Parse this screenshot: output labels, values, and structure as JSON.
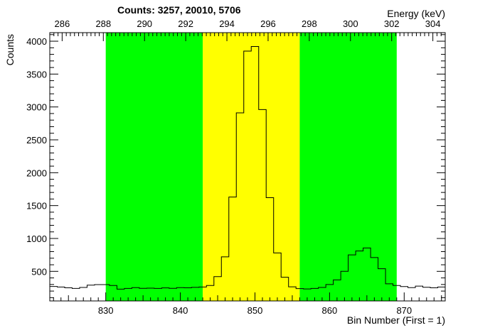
{
  "chart_data": {
    "type": "bar",
    "title": "Counts:   3257,   20010,   5706",
    "xlabel": "Bin Number (First = 1)",
    "ylabel": "Counts",
    "x2label": "Energy (keV)",
    "xlim": [
      822.5,
      875.5
    ],
    "ylim": [
      50,
      4130
    ],
    "x2lim": [
      285.4,
      304.6
    ],
    "grid": false,
    "legend": "none",
    "regions": [
      {
        "label": "background-left",
        "x_range": [
          830.0,
          843.0
        ],
        "color": "#00ff00"
      },
      {
        "label": "peak",
        "x_range": [
          843.0,
          856.0
        ],
        "color": "#ffff00"
      },
      {
        "label": "background-right",
        "x_range": [
          856.0,
          869.0
        ],
        "color": "#00ff00"
      }
    ],
    "bins": {
      "first_edge": 822.5,
      "bin_width": 1,
      "values": [
        270,
        262,
        250,
        240,
        255,
        290,
        298,
        298,
        285,
        230,
        240,
        252,
        242,
        244,
        240,
        248,
        242,
        252,
        250,
        256,
        262,
        285,
        420,
        720,
        1630,
        2910,
        3850,
        3920,
        2960,
        1620,
        780,
        410,
        265,
        238,
        232,
        240,
        255,
        300,
        370,
        500,
        750,
        810,
        855,
        710,
        540,
        310,
        285,
        268,
        252,
        275,
        258,
        250,
        262
      ]
    },
    "x_ticks": [
      830,
      840,
      850,
      860,
      870
    ],
    "x_tick_labels": [
      "830",
      "840",
      "850",
      "860",
      "870"
    ],
    "y_ticks": [
      500,
      1000,
      1500,
      2000,
      2500,
      3000,
      3500,
      4000
    ],
    "y_tick_labels": [
      "500",
      "1000",
      "1500",
      "2000",
      "2500",
      "3000",
      "3500",
      "4000"
    ],
    "x2_ticks": [
      286,
      288,
      290,
      292,
      294,
      296,
      298,
      300,
      302,
      304
    ],
    "x2_tick_labels": [
      "286",
      "288",
      "290",
      "292",
      "294",
      "296",
      "298",
      "300",
      "302",
      "304"
    ],
    "colors": {
      "line": "#000000",
      "background": "#ffffff",
      "frame": "#000000"
    }
  }
}
